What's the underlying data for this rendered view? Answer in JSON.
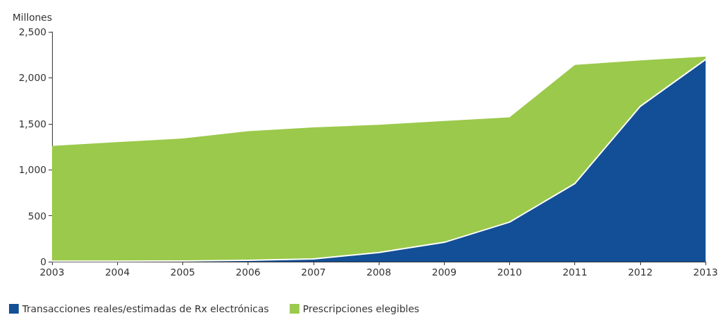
{
  "chart_data": {
    "type": "area",
    "ylabel": "Millones",
    "stacked": true,
    "categories": [
      "2003",
      "2004",
      "2005",
      "2006",
      "2007",
      "2008",
      "2009",
      "2010",
      "2011",
      "2012",
      "2013"
    ],
    "series": [
      {
        "name": "Transacciones reales/estimadas de Rx electrónicas",
        "color": "#134f96",
        "values": [
          5,
          5,
          8,
          15,
          30,
          100,
          210,
          430,
          850,
          1690,
          2200
        ]
      },
      {
        "name": "Prescripciones elegibles",
        "color": "#9bc94b",
        "values": [
          1255,
          1295,
          1332,
          1405,
          1430,
          1390,
          1320,
          1140,
          1290,
          500,
          30
        ]
      }
    ],
    "ylim": [
      0,
      2500
    ],
    "yticks": [
      0,
      500,
      {
        "value": 1000,
        "label": "1,000"
      },
      {
        "value": 1500,
        "label": "1,500"
      },
      {
        "value": 2000,
        "label": "2,000"
      },
      {
        "value": 2500,
        "label": "2,500"
      }
    ],
    "grid": false,
    "legend": "bottom left"
  }
}
